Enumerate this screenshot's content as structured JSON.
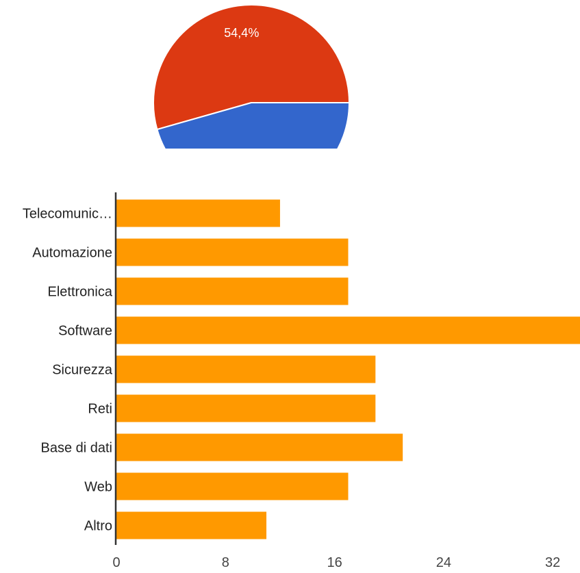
{
  "chart_data": [
    {
      "type": "pie",
      "slices": [
        {
          "value": 54.4,
          "label": "54,4%",
          "color": "#dc3912"
        },
        {
          "value": 45.6,
          "label": "",
          "color": "#3366cc"
        }
      ]
    },
    {
      "type": "bar",
      "orientation": "horizontal",
      "categories": [
        "Telecomunic…",
        "Automazione",
        "Elettronica",
        "Software",
        "Sicurezza",
        "Reti",
        "Base di dati",
        "Web",
        "Altro"
      ],
      "values": [
        12,
        17,
        17,
        34,
        19,
        19,
        21,
        17,
        11
      ],
      "xticks": [
        "0",
        "8",
        "16",
        "24",
        "32"
      ],
      "xlim": [
        0,
        34
      ],
      "color": "#ff9900",
      "grid": false
    }
  ]
}
